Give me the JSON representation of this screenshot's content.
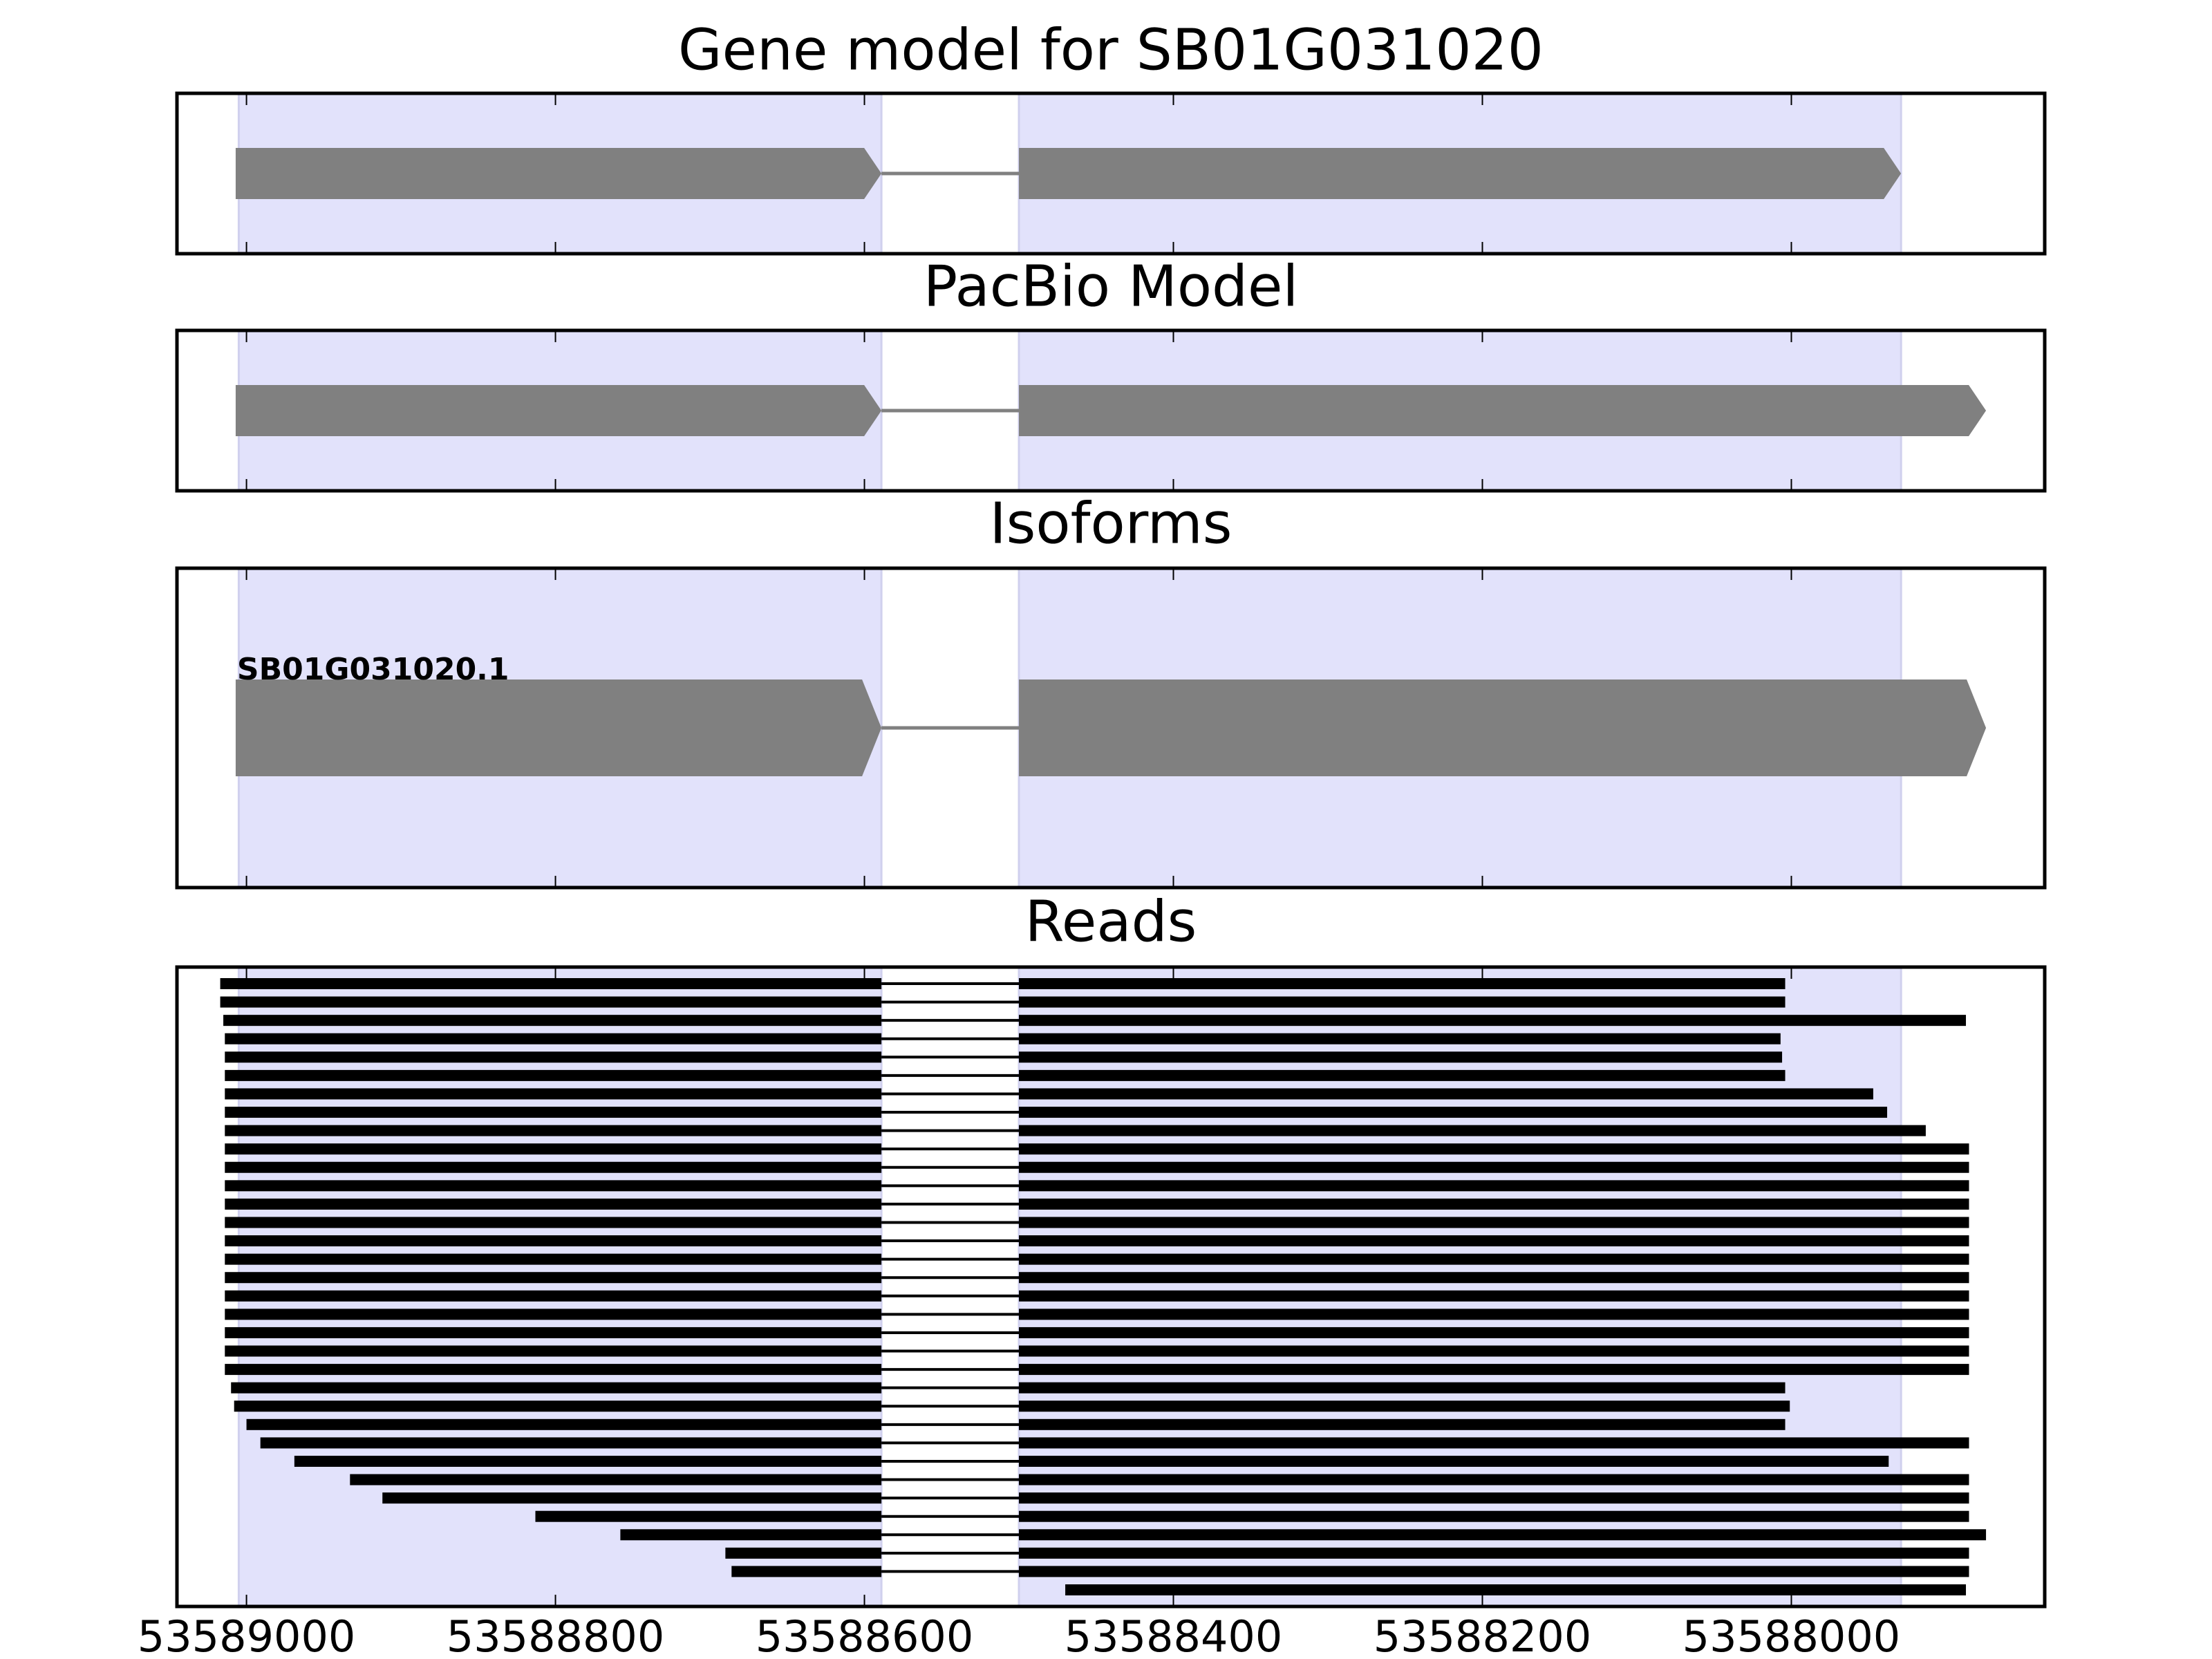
{
  "chart_data": {
    "type": "gene_model",
    "xlim": [
      53589045,
      53587836
    ],
    "xticks": [
      53589000,
      53588800,
      53588600,
      53588400,
      53588200,
      53588000
    ],
    "highlight": [
      [
        53589005,
        53588589
      ],
      [
        53588500,
        53587929
      ]
    ],
    "panels": [
      {
        "title": "Gene model for SB01G031020",
        "exons": [
          [
            53589007,
            53588589
          ],
          [
            53588500,
            53587929
          ]
        ]
      },
      {
        "title": "PacBio Model",
        "exons": [
          [
            53589007,
            53588589
          ],
          [
            53588500,
            53587874
          ]
        ]
      },
      {
        "title": "Isoforms",
        "label": "SB01G031020.1",
        "exons": [
          [
            53589007,
            53588589
          ],
          [
            53588500,
            53587874
          ]
        ]
      },
      {
        "title": "Reads",
        "junction": [
          53588589,
          53588500
        ],
        "starts": [
          53589017,
          53589017,
          53589015,
          53589014,
          53589014,
          53589014,
          53589014,
          53589014,
          53589014,
          53589014,
          53589014,
          53589014,
          53589014,
          53589014,
          53589014,
          53589014,
          53589014,
          53589014,
          53589014,
          53589014,
          53589014,
          53589014,
          53589010,
          53589008,
          53589000,
          53588991,
          53588969,
          53588933,
          53588912,
          53588813,
          53588758,
          53588690,
          53588686,
          53588470
        ],
        "ends": [
          53588004,
          53588004,
          53587887,
          53588007,
          53588006,
          53588004,
          53587947,
          53587938,
          53587913,
          53587885,
          53587885,
          53587885,
          53587885,
          53587885,
          53587885,
          53587885,
          53587885,
          53587885,
          53587885,
          53587885,
          53587885,
          53587885,
          53588004,
          53588001,
          53588004,
          53587885,
          53587937,
          53587885,
          53587885,
          53587885,
          53587874,
          53587885,
          53587885,
          53587887
        ]
      }
    ]
  }
}
